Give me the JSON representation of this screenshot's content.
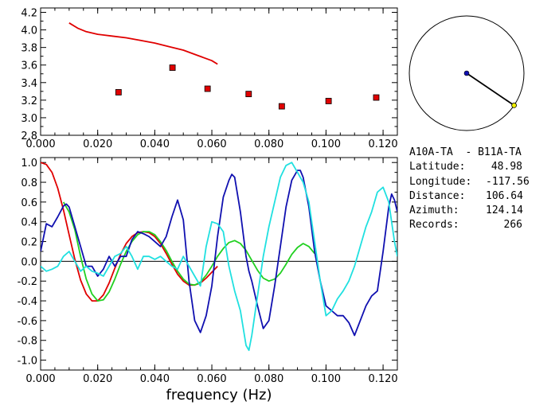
{
  "chart_data": [
    {
      "type": "scatter",
      "title": "",
      "xlabel": "",
      "ylabel": "",
      "xlim": [
        0.0,
        0.125
      ],
      "ylim": [
        2.8,
        4.25
      ],
      "xticks": [
        "0.000",
        "0.020",
        "0.040",
        "0.060",
        "0.080",
        "0.100",
        "0.120"
      ],
      "yticks": [
        "2.8",
        "3.0",
        "3.2",
        "3.4",
        "3.6",
        "3.8",
        "4.0",
        "4.2"
      ],
      "grid": false,
      "series": [
        {
          "kind": "line",
          "color": "#e00000",
          "x": [
            0.01,
            0.013,
            0.016,
            0.02,
            0.025,
            0.03,
            0.035,
            0.04,
            0.045,
            0.05,
            0.055,
            0.06,
            0.062
          ],
          "y": [
            4.08,
            4.02,
            3.98,
            3.95,
            3.93,
            3.91,
            3.88,
            3.85,
            3.81,
            3.77,
            3.71,
            3.65,
            3.61
          ]
        },
        {
          "kind": "points",
          "color": "#e00000",
          "x": [
            0.0273,
            0.0462,
            0.0585,
            0.0729,
            0.0845,
            0.1009,
            0.1176
          ],
          "y": [
            3.29,
            3.57,
            3.33,
            3.27,
            3.13,
            3.19,
            3.23
          ]
        }
      ]
    },
    {
      "type": "line",
      "title": "",
      "xlabel": "frequency (Hz)",
      "ylabel": "",
      "xlim": [
        0.0,
        0.125
      ],
      "ylim": [
        -1.1,
        1.05
      ],
      "xticks": [
        "0.000",
        "0.020",
        "0.040",
        "0.060",
        "0.080",
        "0.100",
        "0.120"
      ],
      "yticks": [
        "1.0",
        "0.8",
        "0.6",
        "0.4",
        "0.2",
        "0.0",
        "-0.2",
        "-0.4",
        "-0.6",
        "-0.8",
        "-1.0"
      ],
      "zero_line": true,
      "grid": false,
      "series": [
        {
          "color": "#e00000",
          "x": [
            0.0,
            0.002,
            0.004,
            0.006,
            0.008,
            0.01,
            0.012,
            0.014,
            0.016,
            0.018,
            0.02,
            0.022,
            0.024,
            0.026,
            0.028,
            0.03,
            0.032,
            0.034,
            0.036,
            0.038,
            0.04,
            0.042,
            0.044,
            0.046,
            0.048,
            0.05,
            0.052,
            0.054,
            0.056,
            0.058,
            0.06,
            0.062
          ],
          "y": [
            1.0,
            0.98,
            0.9,
            0.74,
            0.52,
            0.27,
            0.02,
            -0.19,
            -0.33,
            -0.4,
            -0.4,
            -0.34,
            -0.22,
            -0.07,
            0.07,
            0.18,
            0.25,
            0.29,
            0.3,
            0.29,
            0.25,
            0.18,
            0.08,
            -0.03,
            -0.13,
            -0.2,
            -0.24,
            -0.24,
            -0.22,
            -0.17,
            -0.11,
            -0.05
          ]
        },
        {
          "color": "#20d020",
          "x": [
            0.008,
            0.01,
            0.012,
            0.014,
            0.016,
            0.018,
            0.02,
            0.022,
            0.024,
            0.026,
            0.028,
            0.03,
            0.032,
            0.034,
            0.036,
            0.038,
            0.04,
            0.042,
            0.044,
            0.046,
            0.048,
            0.05,
            0.052,
            0.054,
            0.056,
            0.058,
            0.06,
            0.062,
            0.064,
            0.066,
            0.068,
            0.07,
            0.072,
            0.074,
            0.076,
            0.078,
            0.08,
            0.082,
            0.084,
            0.086,
            0.088,
            0.09,
            0.092,
            0.094,
            0.096
          ],
          "y": [
            0.6,
            0.5,
            0.32,
            0.05,
            -0.18,
            -0.33,
            -0.4,
            -0.39,
            -0.31,
            -0.18,
            -0.03,
            0.1,
            0.2,
            0.27,
            0.3,
            0.3,
            0.27,
            0.2,
            0.11,
            0.0,
            -0.1,
            -0.18,
            -0.23,
            -0.24,
            -0.21,
            -0.14,
            -0.05,
            0.05,
            0.13,
            0.19,
            0.21,
            0.18,
            0.11,
            0.01,
            -0.09,
            -0.17,
            -0.2,
            -0.18,
            -0.12,
            -0.03,
            0.07,
            0.14,
            0.18,
            0.15,
            0.08
          ]
        },
        {
          "color": "#1010b0",
          "x": [
            0.0,
            0.002,
            0.004,
            0.006,
            0.008,
            0.009,
            0.01,
            0.012,
            0.014,
            0.016,
            0.018,
            0.02,
            0.022,
            0.024,
            0.026,
            0.028,
            0.03,
            0.032,
            0.034,
            0.036,
            0.038,
            0.04,
            0.042,
            0.044,
            0.046,
            0.048,
            0.05,
            0.052,
            0.054,
            0.056,
            0.058,
            0.06,
            0.062,
            0.064,
            0.066,
            0.067,
            0.068,
            0.07,
            0.072,
            0.073,
            0.074,
            0.076,
            0.078,
            0.08,
            0.082,
            0.084,
            0.086,
            0.088,
            0.09,
            0.091,
            0.092,
            0.094,
            0.096,
            0.098,
            0.1,
            0.102,
            0.104,
            0.106,
            0.108,
            0.11,
            0.112,
            0.114,
            0.116,
            0.118,
            0.12,
            0.122,
            0.123,
            0.124,
            0.125
          ],
          "y": [
            0.1,
            0.38,
            0.35,
            0.45,
            0.56,
            0.58,
            0.55,
            0.35,
            0.15,
            -0.05,
            -0.05,
            -0.15,
            -0.08,
            0.05,
            -0.05,
            0.05,
            0.05,
            0.22,
            0.3,
            0.28,
            0.25,
            0.2,
            0.15,
            0.25,
            0.45,
            0.62,
            0.42,
            -0.2,
            -0.6,
            -0.72,
            -0.55,
            -0.25,
            0.25,
            0.65,
            0.82,
            0.88,
            0.85,
            0.5,
            0.05,
            -0.1,
            -0.2,
            -0.45,
            -0.68,
            -0.6,
            -0.25,
            0.15,
            0.55,
            0.82,
            0.92,
            0.92,
            0.85,
            0.55,
            0.1,
            -0.2,
            -0.45,
            -0.5,
            -0.55,
            -0.55,
            -0.62,
            -0.75,
            -0.6,
            -0.45,
            -0.35,
            -0.3,
            0.1,
            0.55,
            0.68,
            0.62,
            0.5
          ]
        },
        {
          "color": "#20e0e0",
          "x": [
            0.0,
            0.002,
            0.004,
            0.006,
            0.008,
            0.01,
            0.012,
            0.014,
            0.016,
            0.018,
            0.02,
            0.022,
            0.024,
            0.026,
            0.028,
            0.03,
            0.032,
            0.034,
            0.036,
            0.038,
            0.04,
            0.042,
            0.044,
            0.046,
            0.048,
            0.05,
            0.052,
            0.054,
            0.056,
            0.058,
            0.06,
            0.062,
            0.064,
            0.066,
            0.068,
            0.07,
            0.072,
            0.073,
            0.074,
            0.076,
            0.078,
            0.08,
            0.082,
            0.084,
            0.086,
            0.088,
            0.09,
            0.091,
            0.092,
            0.094,
            0.096,
            0.098,
            0.1,
            0.102,
            0.104,
            0.106,
            0.108,
            0.11,
            0.112,
            0.114,
            0.116,
            0.118,
            0.12,
            0.122,
            0.124,
            0.125
          ],
          "y": [
            -0.05,
            -0.1,
            -0.08,
            -0.05,
            0.05,
            0.1,
            0.0,
            -0.1,
            -0.05,
            -0.1,
            -0.12,
            -0.15,
            -0.05,
            0.05,
            0.08,
            0.15,
            0.05,
            -0.08,
            0.05,
            0.05,
            0.02,
            0.05,
            0.0,
            -0.05,
            -0.08,
            0.05,
            -0.05,
            -0.15,
            -0.25,
            0.15,
            0.4,
            0.38,
            0.3,
            -0.05,
            -0.3,
            -0.5,
            -0.85,
            -0.9,
            -0.75,
            -0.35,
            0.05,
            0.35,
            0.6,
            0.85,
            0.97,
            1.0,
            0.9,
            0.85,
            0.8,
            0.6,
            0.2,
            -0.2,
            -0.55,
            -0.5,
            -0.38,
            -0.3,
            -0.2,
            -0.05,
            0.15,
            0.35,
            0.5,
            0.7,
            0.75,
            0.6,
            0.2,
            0.05
          ]
        }
      ]
    },
    {
      "type": "diagram",
      "title": "",
      "radius_units": 1.0,
      "azimuth_deg": 124.14,
      "inner_radius": 0.0,
      "circle_color": "#000000",
      "line_color": "#000000",
      "center_dot_color": "#1010b0",
      "end_dot_color": "#f0f000"
    }
  ],
  "info": {
    "station_pair": "A10A-TA  - B11A-TA",
    "rows": [
      {
        "label": "Latitude:",
        "value": "48.98"
      },
      {
        "label": "Longitude:",
        "value": "-117.56"
      },
      {
        "label": "Distance:",
        "value": "106.64"
      },
      {
        "label": "Azimuth:",
        "value": "124.14"
      },
      {
        "label": "Records:",
        "value": "266"
      }
    ]
  }
}
